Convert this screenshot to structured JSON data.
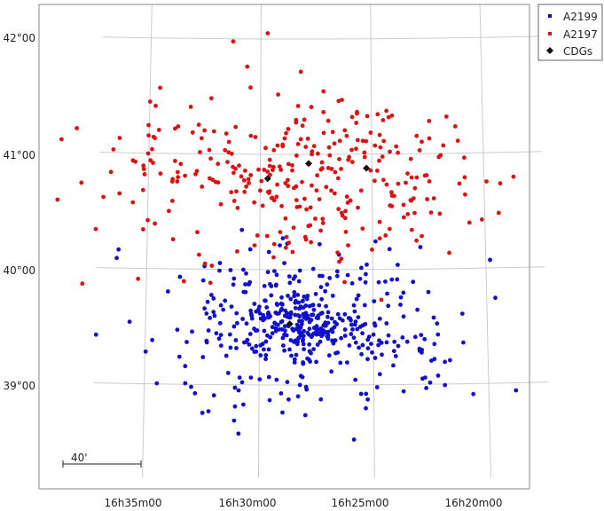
{
  "chart_data": {
    "type": "scatter",
    "title": "",
    "xlabel": "",
    "ylabel": "",
    "x_ticks": [
      "16h35m00",
      "16h30m00",
      "16h25m00",
      "16h20m00"
    ],
    "y_ticks": [
      "42°00",
      "41°00",
      "40°00",
      "39°00"
    ],
    "grid": true,
    "legend_position": "top-right",
    "scale_bar_label": "40'",
    "series": [
      {
        "name": "A2199",
        "color": "#1010cc",
        "marker": "circle",
        "center": [
          16.47,
          39.52
        ],
        "spread": [
          0.058,
          0.33
        ],
        "count": 480,
        "seed": 11
      },
      {
        "name": "A2197",
        "color": "#dd1111",
        "marker": "circle",
        "center": [
          16.46,
          40.82
        ],
        "spread": [
          0.072,
          0.36
        ],
        "count": 330,
        "seed": 29
      },
      {
        "name": "CDGs",
        "color": "#111111",
        "marker": "diamond",
        "points": [
          {
            "ra": "16h29m40",
            "dec": 40.79
          },
          {
            "ra": "16h27m50",
            "dec": 40.92
          },
          {
            "ra": "16h25m15",
            "dec": 40.88
          },
          {
            "ra": "16h28m40",
            "dec": 39.53
          }
        ]
      }
    ]
  }
}
